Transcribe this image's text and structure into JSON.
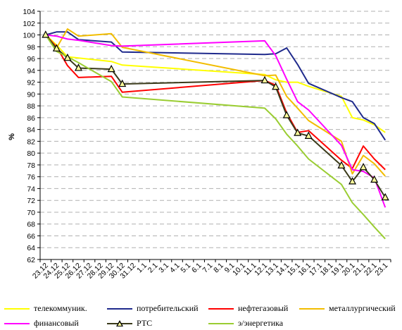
{
  "chart_data": {
    "type": "line",
    "ylabel": "%",
    "xlabel": "",
    "title": "",
    "ylim": [
      62,
      104
    ],
    "yticks": [
      62,
      64,
      66,
      68,
      70,
      72,
      74,
      76,
      78,
      80,
      82,
      84,
      86,
      88,
      90,
      92,
      94,
      96,
      98,
      100,
      102,
      104
    ],
    "grid": true,
    "legend_position": "bottom",
    "categories": [
      "23.12",
      "24.12",
      "25.12",
      "26.12",
      "27.12",
      "28.12",
      "29.12",
      "30.12",
      "31.12",
      "1.1",
      "2.1",
      "3.1",
      "4.1",
      "5.1",
      "6.1",
      "7.1",
      "8.1",
      "9.1",
      "10.1",
      "11.1",
      "12.1",
      "13.1",
      "14.1",
      "15.1",
      "16.1",
      "17.1",
      "18.1",
      "19.1",
      "20.1",
      "21.1",
      "22.1",
      "23.1"
    ],
    "series": [
      {
        "name": "телекоммуник.",
        "color": "#ffff00",
        "x": [
          "23.12",
          "24.12",
          "25.12",
          "26.12",
          "29.12",
          "30.12",
          "12.1",
          "13.1",
          "14.1",
          "15.1",
          "16.1",
          "19.1",
          "20.1",
          "21.1",
          "22.1",
          "23.1"
        ],
        "values": [
          100.0,
          98.3,
          96.3,
          96.1,
          95.5,
          94.9,
          93.3,
          92.4,
          92.0,
          92.0,
          91.3,
          89.6,
          86.0,
          85.6,
          84.8,
          83.5
        ],
        "marker": false
      },
      {
        "name": "потребительский",
        "color": "#1f2a8c",
        "x": [
          "23.12",
          "24.12",
          "25.12",
          "26.12",
          "29.12",
          "30.12",
          "12.1",
          "13.1",
          "14.1",
          "15.1",
          "16.1",
          "19.1",
          "20.1",
          "21.1",
          "22.1",
          "23.1"
        ],
        "values": [
          100.0,
          100.5,
          100.5,
          99.2,
          98.8,
          97.1,
          96.7,
          96.8,
          97.8,
          95.0,
          91.8,
          89.4,
          88.7,
          86.0,
          85.0,
          82.2
        ],
        "marker": false
      },
      {
        "name": "нефтегазовый",
        "color": "#ff0000",
        "x": [
          "23.12",
          "24.12",
          "25.12",
          "26.12",
          "29.12",
          "30.12",
          "12.1",
          "13.1",
          "14.1",
          "15.1",
          "16.1",
          "19.1",
          "20.1",
          "21.1",
          "22.1",
          "23.1"
        ],
        "values": [
          100.0,
          98.0,
          94.8,
          92.8,
          93.0,
          90.3,
          92.3,
          91.5,
          86.8,
          83.5,
          83.8,
          78.8,
          77.4,
          81.2,
          79.0,
          77.2
        ],
        "marker": false
      },
      {
        "name": "металлургический",
        "color": "#f2bd00",
        "x": [
          "23.12",
          "24.12",
          "25.12",
          "26.12",
          "29.12",
          "30.12",
          "12.1",
          "13.1",
          "14.1",
          "15.1",
          "16.1",
          "19.1",
          "20.1",
          "21.1",
          "22.1",
          "23.1"
        ],
        "values": [
          100.0,
          97.8,
          101.0,
          99.8,
          100.2,
          97.9,
          93.1,
          93.2,
          89.6,
          87.6,
          85.5,
          82.0,
          76.5,
          79.6,
          78.2,
          76.1
        ],
        "marker": false
      },
      {
        "name": "финансовый",
        "color": "#ff00ff",
        "x": [
          "23.12",
          "24.12",
          "25.12",
          "26.12",
          "29.12",
          "30.12",
          "12.1",
          "13.1",
          "14.1",
          "15.1",
          "16.1",
          "19.1",
          "20.1",
          "21.1",
          "22.1",
          "23.1"
        ],
        "values": [
          100.0,
          99.8,
          99.3,
          99.1,
          98.2,
          98.1,
          99.0,
          96.5,
          92.5,
          88.7,
          87.3,
          81.3,
          77.2,
          76.9,
          75.8,
          70.8
        ],
        "marker": false
      },
      {
        "name": "РТС",
        "color": "#3a3a1a",
        "x": [
          "23.12",
          "24.12",
          "25.12",
          "26.12",
          "29.12",
          "30.12",
          "12.1",
          "13.1",
          "14.1",
          "15.1",
          "16.1",
          "19.1",
          "20.1",
          "21.1",
          "22.1",
          "23.1"
        ],
        "values": [
          100.0,
          97.7,
          96.1,
          94.4,
          94.2,
          91.7,
          92.3,
          91.2,
          86.4,
          83.4,
          82.9,
          77.9,
          75.2,
          77.6,
          75.5,
          72.5
        ],
        "marker": true
      },
      {
        "name": "э/энергетика",
        "color": "#9acd32",
        "x": [
          "23.12",
          "24.12",
          "25.12",
          "26.12",
          "29.12",
          "30.12",
          "12.1",
          "13.1",
          "14.1",
          "15.1",
          "16.1",
          "19.1",
          "20.1",
          "21.1",
          "22.1",
          "23.1"
        ],
        "values": [
          100.0,
          97.2,
          96.3,
          95.3,
          92.1,
          89.5,
          87.6,
          85.8,
          83.2,
          81.2,
          79.0,
          74.7,
          71.6,
          69.6,
          67.5,
          65.5
        ],
        "marker": false
      }
    ]
  },
  "legend": [
    {
      "label": "телекоммуник.",
      "color": "#ffff00",
      "marker": false
    },
    {
      "label": "потребительский",
      "color": "#1f2a8c",
      "marker": false
    },
    {
      "label": "нефтегазовый",
      "color": "#ff0000",
      "marker": false
    },
    {
      "label": "металлургический",
      "color": "#f2bd00",
      "marker": false
    },
    {
      "label": "финансовый",
      "color": "#ff00ff",
      "marker": false
    },
    {
      "label": "РТС",
      "color": "#3a3a1a",
      "marker": true
    },
    {
      "label": "э/энергетика",
      "color": "#9acd32",
      "marker": false
    }
  ]
}
